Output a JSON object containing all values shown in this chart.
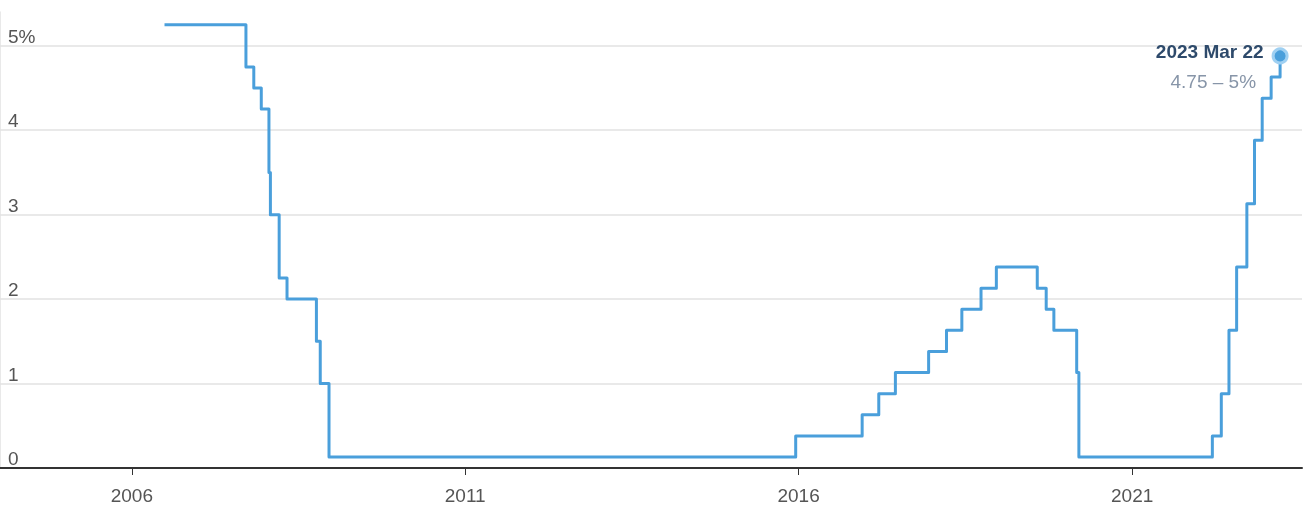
{
  "chart_data": {
    "type": "step",
    "x": [
      "2006-06-29",
      "2007-09-18",
      "2007-10-31",
      "2007-12-11",
      "2008-01-22",
      "2008-01-30",
      "2008-03-18",
      "2008-04-30",
      "2008-10-08",
      "2008-10-29",
      "2008-12-16",
      "2015-12-16",
      "2016-12-14",
      "2017-03-15",
      "2017-06-14",
      "2017-12-13",
      "2018-03-21",
      "2018-06-13",
      "2018-09-26",
      "2018-12-19",
      "2019-07-31",
      "2019-09-18",
      "2019-10-30",
      "2020-03-03",
      "2020-03-15",
      "2022-03-16",
      "2022-05-04",
      "2022-06-15",
      "2022-07-27",
      "2022-09-21",
      "2022-11-02",
      "2022-12-14",
      "2023-02-01",
      "2023-03-22"
    ],
    "series": [
      {
        "color": "#4a9fdb",
        "values": [
          5.25,
          4.75,
          4.5,
          4.25,
          3.5,
          3.0,
          2.25,
          2.0,
          1.5,
          1.0,
          0.13,
          0.38,
          0.63,
          0.88,
          1.13,
          1.38,
          1.63,
          1.88,
          2.13,
          2.38,
          2.13,
          1.88,
          1.63,
          1.13,
          0.13,
          0.38,
          0.88,
          1.63,
          2.38,
          3.13,
          3.88,
          4.38,
          4.63,
          4.88
        ]
      }
    ],
    "xlim": [
      "2004-01-10",
      "2023-07-20"
    ],
    "xticks": [
      {
        "value": "2006",
        "label": "2006"
      },
      {
        "value": "2011",
        "label": "2011"
      },
      {
        "value": "2016",
        "label": "2016"
      },
      {
        "value": "2021",
        "label": "2021"
      }
    ],
    "ylim": [
      0,
      5.4
    ],
    "yticks": [
      0,
      1,
      2,
      3,
      4,
      {
        "value": 5,
        "label": "5%"
      }
    ],
    "grid": "y",
    "marker": "none",
    "annotations": [
      {
        "text": "2023 Mar 22",
        "x": "2023-03-22",
        "y": 4.88
      },
      {
        "text": "4.75 – 5%",
        "x": "2023-03-22",
        "y": 4.88
      }
    ]
  }
}
